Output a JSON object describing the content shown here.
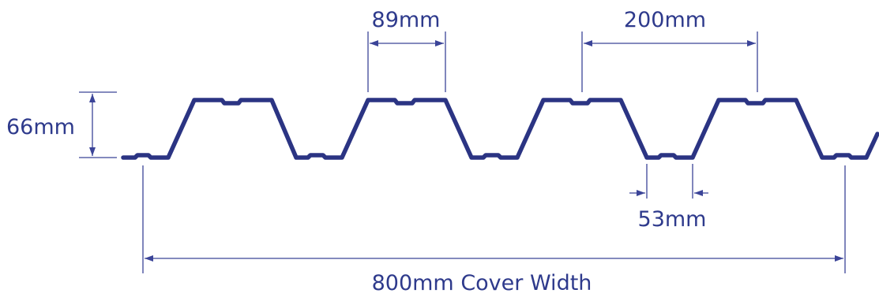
{
  "colors": {
    "profile": "#2b3483",
    "dimension": "#3b4498",
    "text": "#2e3a8c",
    "background": "#ffffff"
  },
  "labels": {
    "rib_top_width": "89mm",
    "rib_pitch": "200mm",
    "profile_depth": "66mm",
    "pan_width": "53mm",
    "cover_width": "800mm Cover Width"
  }
}
